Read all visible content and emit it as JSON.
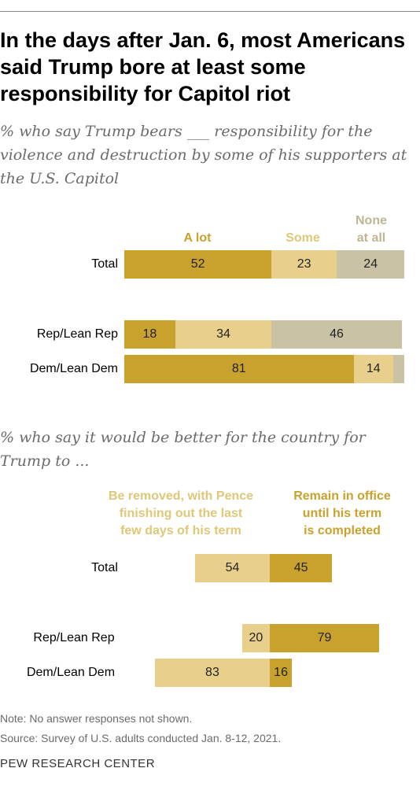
{
  "title": "In the days after Jan. 6, most Americans said Trump bore at least some responsibility for Capitol riot",
  "colors": {
    "a_lot": "#c9a12d",
    "some": "#e8d08c",
    "none_at_all": "#c9c2a5",
    "removed": "#e8d08c",
    "remain": "#c9a12d"
  },
  "chart_data": [
    {
      "type": "bar",
      "orientation": "horizontal",
      "stacked": true,
      "title": "% who say Trump bears ___ responsibility for the violence and destruction by some of his supporters at the U.S. Capitol",
      "categories": [
        "Total",
        "Rep/Lean Rep",
        "Dem/Lean Dem"
      ],
      "series": [
        {
          "name": "A lot",
          "values": [
            52,
            18,
            81
          ]
        },
        {
          "name": "Some",
          "values": [
            23,
            34,
            14
          ]
        },
        {
          "name": "None at all",
          "values": [
            24,
            46,
            4
          ]
        }
      ],
      "value_labels": {
        "a_lot": [
          "52",
          "18",
          "81"
        ],
        "some": [
          "23",
          "34",
          "14"
        ],
        "none_at_all": [
          "24",
          "46",
          ""
        ]
      },
      "series_headers": {
        "a_lot": "A lot",
        "some": "Some",
        "none_at_all_line1": "None",
        "none_at_all_line2": "at all"
      }
    },
    {
      "type": "bar",
      "orientation": "horizontal",
      "stacked": true,
      "diverging": true,
      "title": "% who say it would be better for the country for Trump to ...",
      "categories": [
        "Total",
        "Rep/Lean Rep",
        "Dem/Lean Dem"
      ],
      "series": [
        {
          "name": "Be removed, with Pence finishing out the last few days of his term",
          "values": [
            54,
            20,
            83
          ]
        },
        {
          "name": "Remain in office until his term is completed",
          "values": [
            45,
            79,
            16
          ]
        }
      ],
      "series_headers": {
        "removed_line1": "Be removed, with Pence",
        "removed_line2": "finishing out the last",
        "removed_line3": "few days of his term",
        "remain_line1": "Remain in office",
        "remain_line2": "until his term",
        "remain_line3": "is completed"
      }
    }
  ],
  "notes": {
    "note": "Note: No answer responses not shown.",
    "source": "Source: Survey of U.S. adults conducted Jan. 8-12, 2021."
  },
  "brand": "PEW RESEARCH CENTER"
}
